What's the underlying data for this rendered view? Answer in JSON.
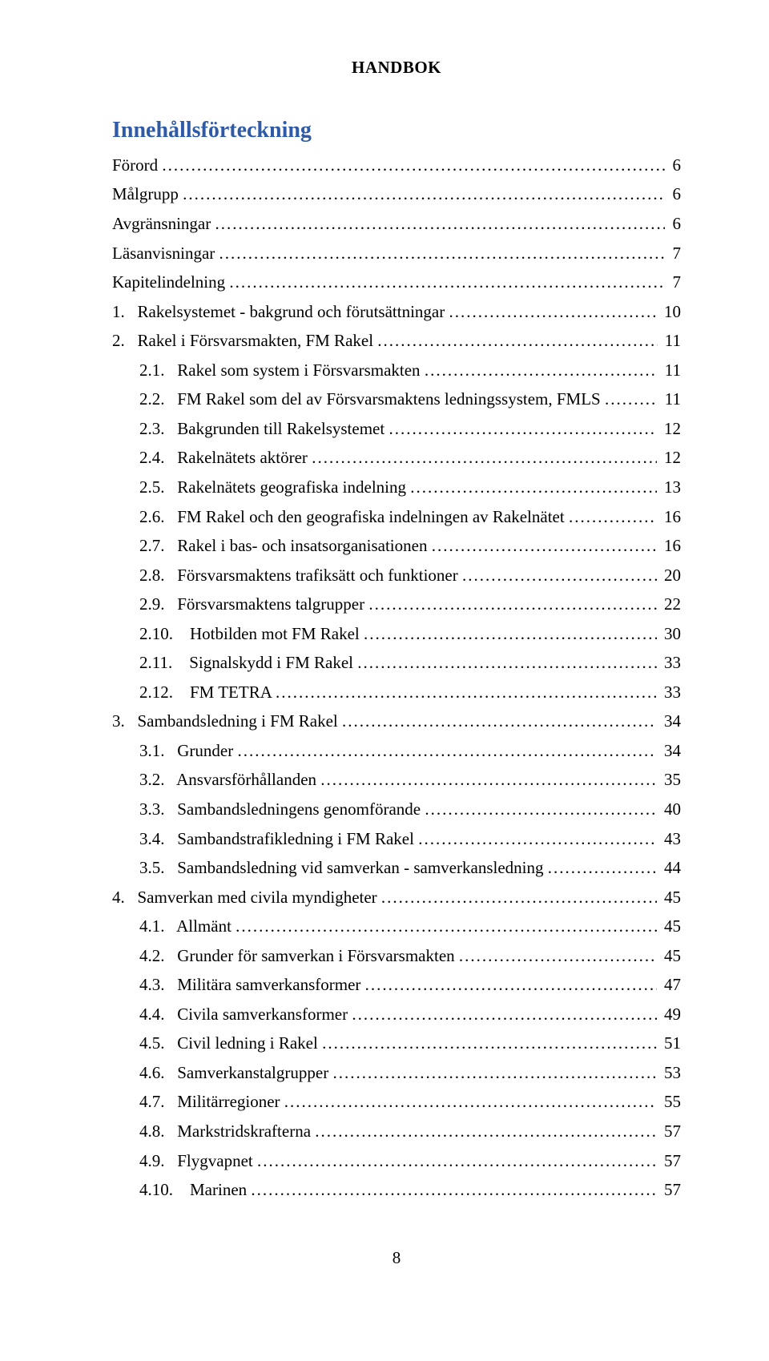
{
  "running_head": "HANDBOK",
  "toc_title": "Innehållsförteckning",
  "page_number": "8",
  "colors": {
    "heading": "#2e5aa8",
    "text": "#000000",
    "background": "#ffffff"
  },
  "typography": {
    "body_family": "Times New Roman",
    "body_size_pt": 16,
    "heading_size_pt": 21,
    "heading_weight": "bold"
  },
  "toc": [
    {
      "level": 0,
      "num": "",
      "title": "Förord",
      "page": "6"
    },
    {
      "level": 0,
      "num": "",
      "title": "Målgrupp",
      "page": "6"
    },
    {
      "level": 0,
      "num": "",
      "title": "Avgränsningar",
      "page": "6"
    },
    {
      "level": 0,
      "num": "",
      "title": "Läsanvisningar",
      "page": "7"
    },
    {
      "level": 0,
      "num": "",
      "title": "Kapitelindelning",
      "page": "7"
    },
    {
      "level": 1,
      "num": "1.",
      "title": "Rakelsystemet - bakgrund och förutsättningar",
      "page": "10"
    },
    {
      "level": 1,
      "num": "2.",
      "title": "Rakel i Försvarsmakten, FM Rakel",
      "page": "11"
    },
    {
      "level": 2,
      "num": "2.1.",
      "title": "Rakel som system i Försvarsmakten",
      "page": "11"
    },
    {
      "level": 2,
      "num": "2.2.",
      "title": "FM Rakel som del av Försvarsmaktens ledningssystem, FMLS",
      "page": "11"
    },
    {
      "level": 2,
      "num": "2.3.",
      "title": "Bakgrunden till Rakelsystemet",
      "page": "12"
    },
    {
      "level": 2,
      "num": "2.4.",
      "title": "Rakelnätets aktörer",
      "page": "12"
    },
    {
      "level": 2,
      "num": "2.5.",
      "title": "Rakelnätets geografiska indelning",
      "page": "13"
    },
    {
      "level": 2,
      "num": "2.6.",
      "title": "FM Rakel och den geografiska indelningen av Rakelnätet",
      "page": "16"
    },
    {
      "level": 2,
      "num": "2.7.",
      "title": "Rakel i bas- och insatsorganisationen",
      "page": "16"
    },
    {
      "level": 2,
      "num": "2.8.",
      "title": "Försvarsmaktens trafiksätt och funktioner",
      "page": "20"
    },
    {
      "level": 2,
      "num": "2.9.",
      "title": "Försvarsmaktens talgrupper",
      "page": "22"
    },
    {
      "level": 3,
      "num": "2.10.",
      "title": "Hotbilden mot FM Rakel",
      "page": "30"
    },
    {
      "level": 3,
      "num": "2.11.",
      "title": "Signalskydd i FM Rakel",
      "page": "33"
    },
    {
      "level": 3,
      "num": "2.12.",
      "title": "FM TETRA",
      "page": "33"
    },
    {
      "level": 1,
      "num": "3.",
      "title": "Sambandsledning i FM Rakel",
      "page": "34"
    },
    {
      "level": 2,
      "num": "3.1.",
      "title": "Grunder",
      "page": "34"
    },
    {
      "level": 2,
      "num": "3.2.",
      "title": "Ansvarsförhållanden",
      "page": "35"
    },
    {
      "level": 2,
      "num": "3.3.",
      "title": "Sambandsledningens genomförande",
      "page": "40"
    },
    {
      "level": 2,
      "num": "3.4.",
      "title": "Sambandstrafikledning i FM Rakel",
      "page": "43"
    },
    {
      "level": 2,
      "num": "3.5.",
      "title": "Sambandsledning vid samverkan - samverkansledning",
      "page": "44"
    },
    {
      "level": 1,
      "num": "4.",
      "title": "Samverkan med civila myndigheter",
      "page": "45"
    },
    {
      "level": 2,
      "num": "4.1.",
      "title": "Allmänt",
      "page": "45"
    },
    {
      "level": 2,
      "num": "4.2.",
      "title": "Grunder för samverkan i Försvarsmakten",
      "page": "45"
    },
    {
      "level": 2,
      "num": "4.3.",
      "title": "Militära samverkansformer",
      "page": "47"
    },
    {
      "level": 2,
      "num": "4.4.",
      "title": "Civila samverkansformer",
      "page": "49"
    },
    {
      "level": 2,
      "num": "4.5.",
      "title": "Civil ledning i Rakel",
      "page": "51"
    },
    {
      "level": 2,
      "num": "4.6.",
      "title": "Samverkanstalgrupper",
      "page": "53"
    },
    {
      "level": 2,
      "num": "4.7.",
      "title": "Militärregioner",
      "page": "55"
    },
    {
      "level": 2,
      "num": "4.8.",
      "title": "Markstridskrafterna",
      "page": "57"
    },
    {
      "level": 2,
      "num": "4.9.",
      "title": "Flygvapnet",
      "page": "57"
    },
    {
      "level": 3,
      "num": "4.10.",
      "title": "Marinen",
      "page": "57"
    }
  ]
}
